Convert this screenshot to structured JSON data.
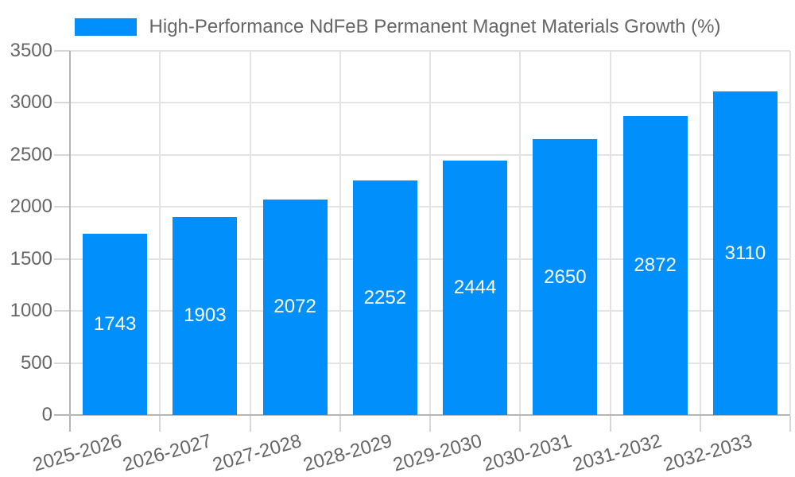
{
  "legend": {
    "label": "High-Performance NdFeB Permanent Magnet Materials Growth (%)",
    "swatch_color": "#008FFB"
  },
  "chart_data": {
    "type": "bar",
    "title": "High-Performance NdFeB Permanent Magnet Materials Growth (%)",
    "categories": [
      "2025-2026",
      "2026-2027",
      "2027-2028",
      "2028-2029",
      "2029-2030",
      "2030-2031",
      "2031-2032",
      "2032-2033"
    ],
    "values": [
      1743,
      1903,
      2072,
      2252,
      2444,
      2650,
      2872,
      3110
    ],
    "value_labels": [
      "1743",
      "1903",
      "2072",
      "2252",
      "2444",
      "2650",
      "2872",
      "3110"
    ],
    "xlabel": "",
    "ylabel": "",
    "ylim": [
      0,
      3500
    ],
    "ytick_interval": 500,
    "yticks": [
      0,
      500,
      1000,
      1500,
      2000,
      2500,
      3000,
      3500
    ],
    "grid": true,
    "legend_position": "top",
    "bar_color": "#008FFB",
    "value_label_color": "#ffffff",
    "axis_text_color": "#666666",
    "gridline_color": "#e3e3e3",
    "axis_line_color": "#b6b6b6",
    "background_color": "#ffffff",
    "x_label_rotation_deg": -16
  }
}
